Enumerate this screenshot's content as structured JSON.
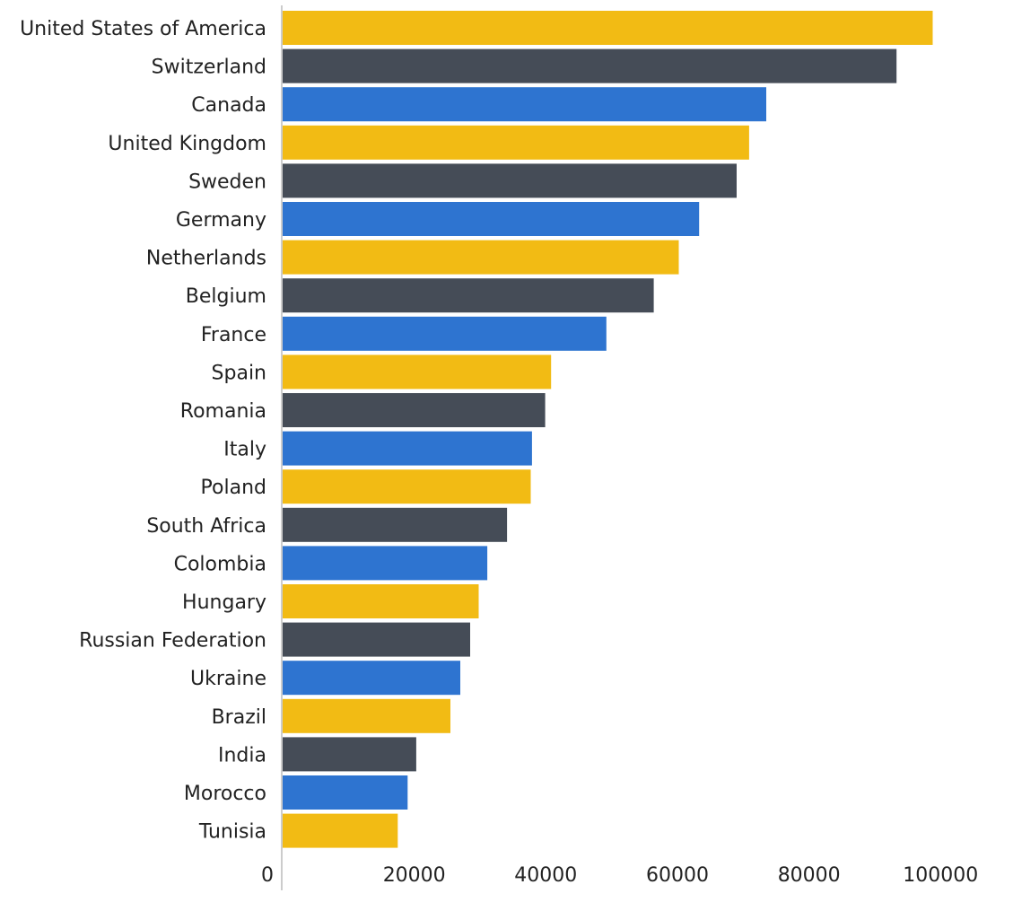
{
  "chart_data": {
    "type": "bar",
    "orientation": "horizontal",
    "title": "",
    "xlabel": "",
    "ylabel": "",
    "categories": [
      "United States of America",
      "Switzerland",
      "Canada",
      "United Kingdom",
      "Sweden",
      "Germany",
      "Netherlands",
      "Belgium",
      "France",
      "Spain",
      "Romania",
      "Italy",
      "Poland",
      "South Africa",
      "Colombia",
      "Hungary",
      "Russian Federation",
      "Ukraine",
      "Brazil",
      "India",
      "Morocco",
      "Tunisia"
    ],
    "values": [
      98800,
      93300,
      73500,
      70900,
      69000,
      63300,
      60200,
      56400,
      49200,
      40800,
      39900,
      37900,
      37700,
      34100,
      31100,
      29800,
      28500,
      27000,
      25500,
      20300,
      19000,
      17500
    ],
    "bar_colors": [
      "#f2bb14",
      "#454c57",
      "#2e74d0"
    ],
    "xlim": [
      0,
      105000
    ],
    "x_ticks": [
      "0",
      "20000",
      "40000",
      "60000",
      "80000",
      "100000"
    ],
    "x_tick_values": [
      0,
      20000,
      40000,
      60000,
      80000,
      100000
    ],
    "grid": false,
    "axis_color": "#cccccc"
  }
}
